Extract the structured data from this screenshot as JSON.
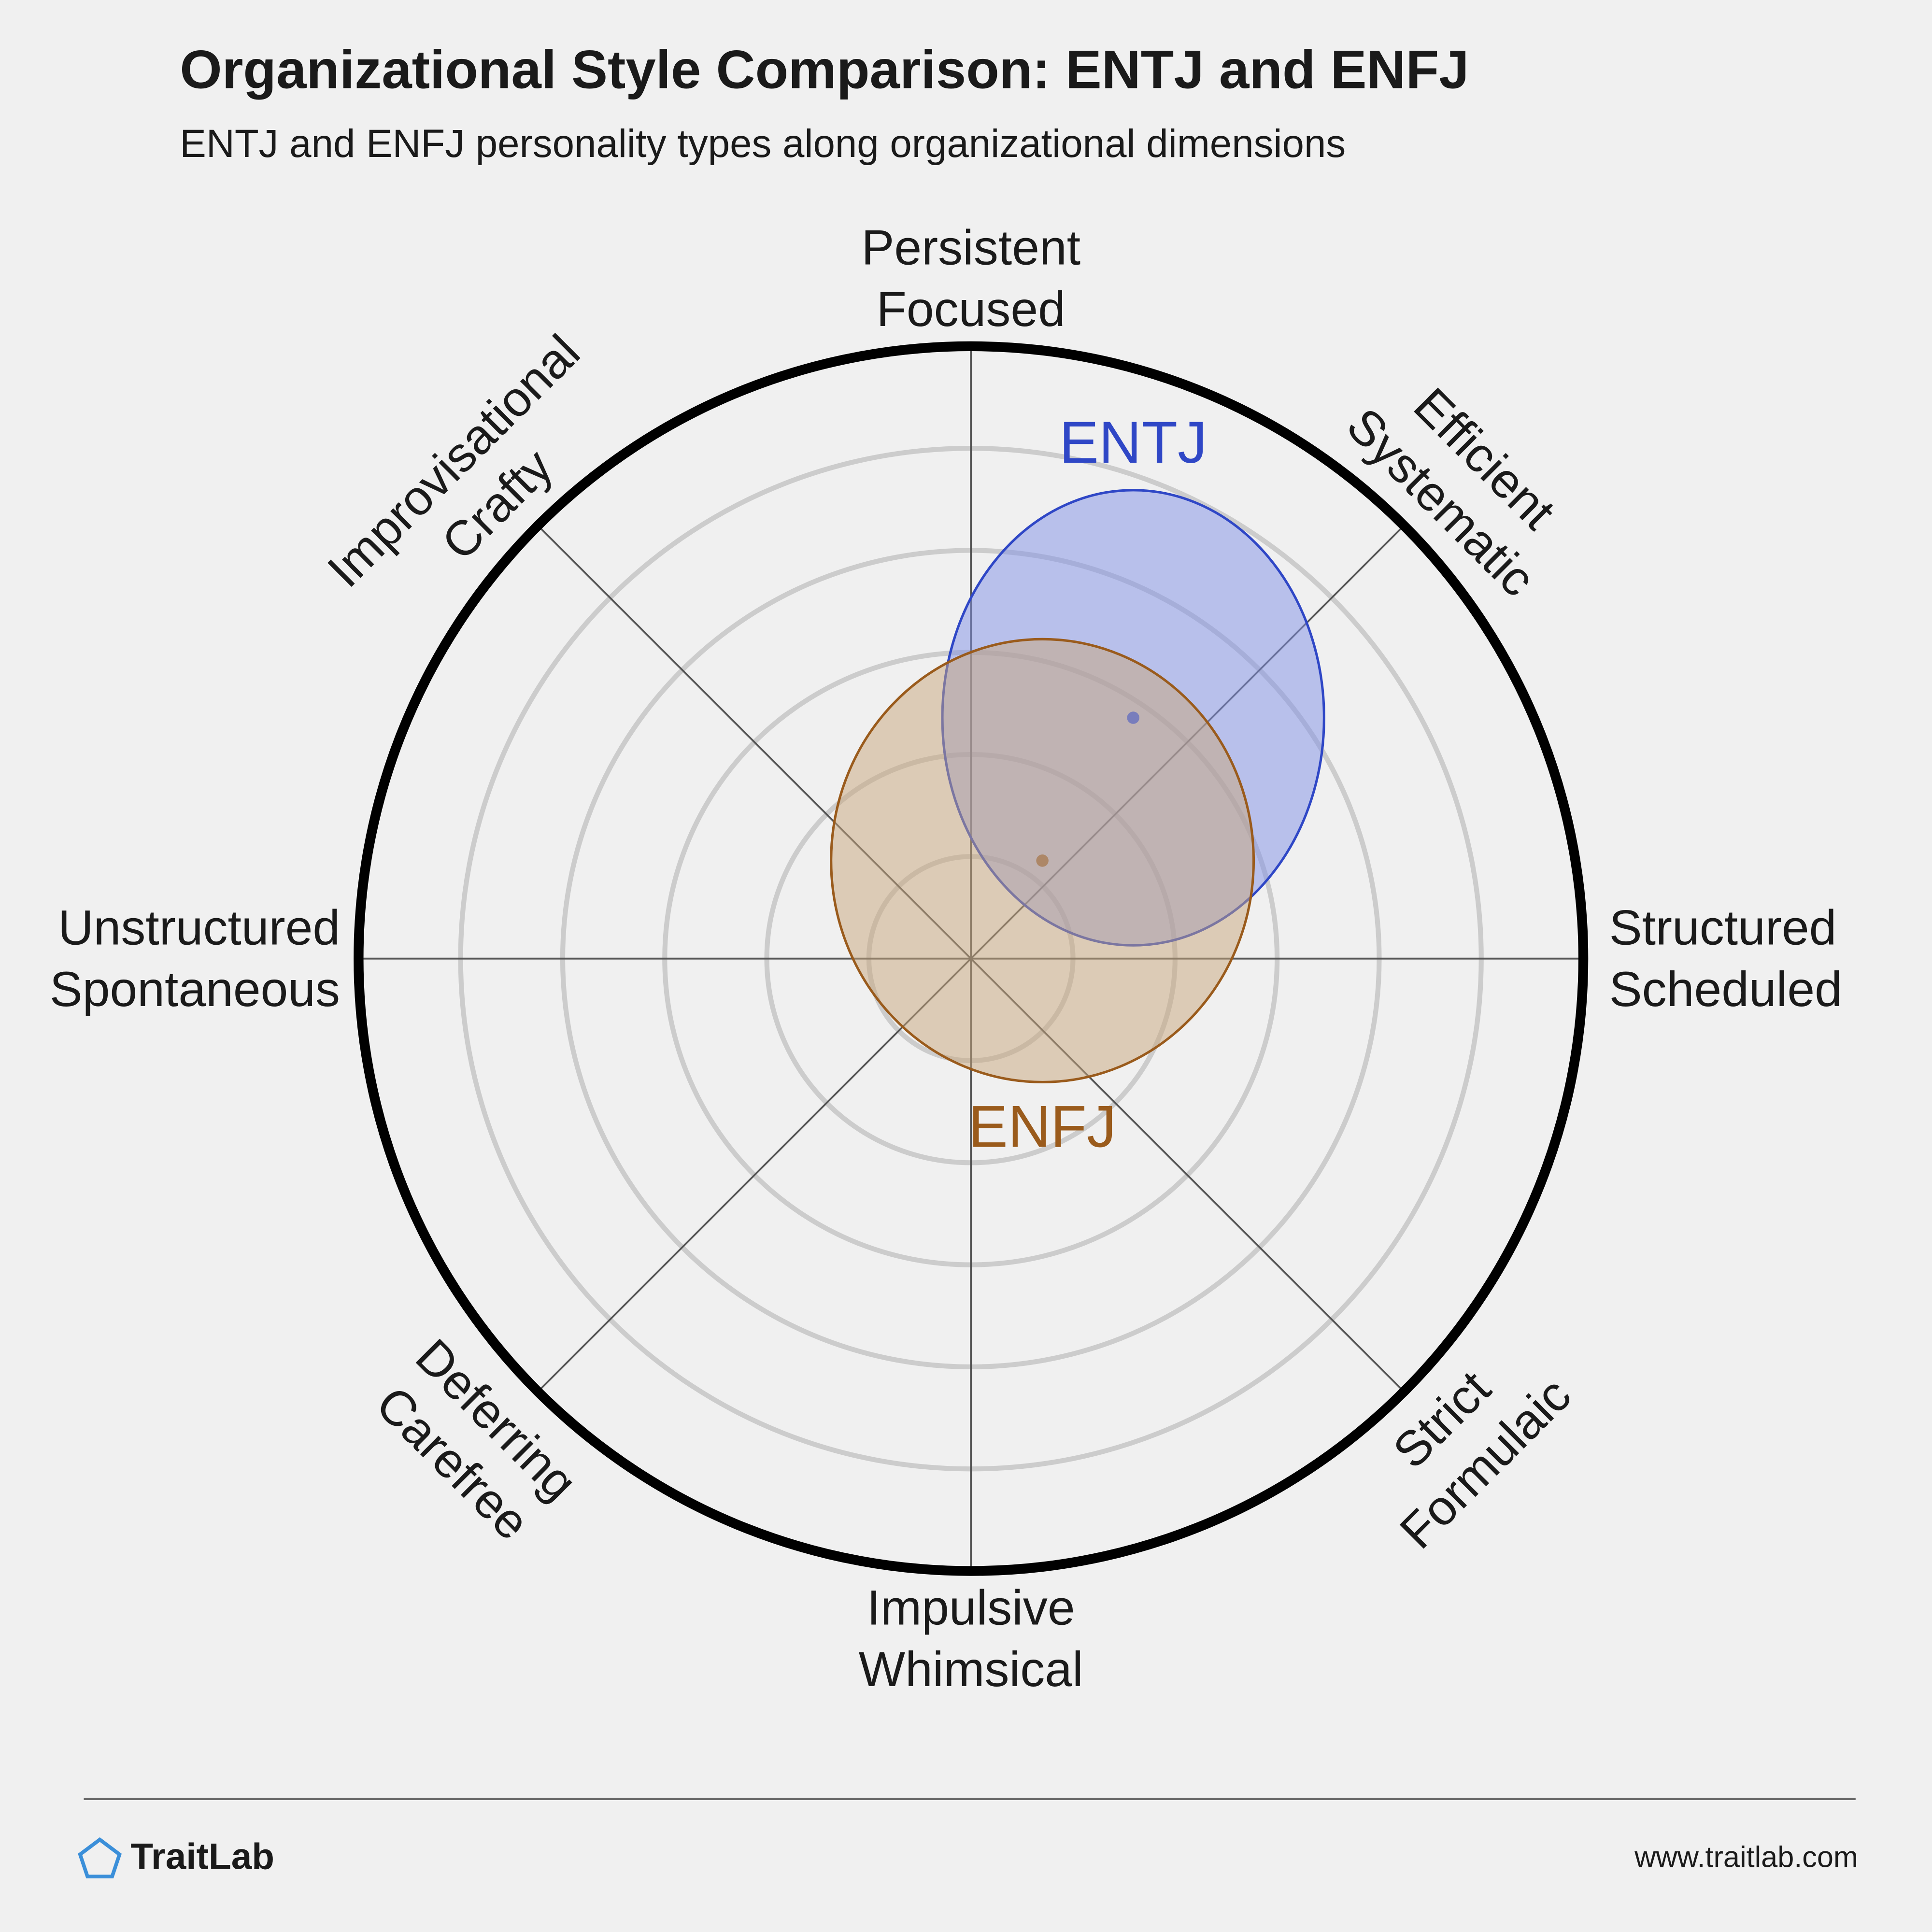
{
  "chart_data": {
    "type": "ellipse",
    "title": "Organizational Style Comparison: ENTJ and ENFJ",
    "subtitle": "ENTJ and ENFJ personality types along organizational dimensions",
    "xlim": [
      -6,
      6
    ],
    "ylim": [
      -6,
      6
    ],
    "rings": [
      1,
      2,
      3,
      4,
      5
    ],
    "axis_labels": [
      {
        "lines": [
          "Persistent",
          "Focused"
        ]
      },
      {
        "lines": [
          "Efficient",
          "Systematic"
        ]
      },
      {
        "lines": [
          "Structured",
          "Scheduled"
        ]
      },
      {
        "lines": [
          "Strict",
          "Formulaic"
        ]
      },
      {
        "lines": [
          "Impulsive",
          "Whimsical"
        ]
      },
      {
        "lines": [
          "Deferring",
          "Carefree"
        ]
      },
      {
        "lines": [
          "Unstructured",
          "Spontaneous"
        ]
      },
      {
        "lines": [
          "Improvisational",
          "Crafty"
        ]
      }
    ],
    "series": [
      {
        "name": "ENTJ",
        "color": "#2f47c6",
        "fill": "#7f90e6",
        "x": 1.59,
        "y": 2.36,
        "rx": 1.87,
        "ry": 2.23
      },
      {
        "name": "ENFJ",
        "color": "#9a5b1c",
        "fill": "#c8a57c",
        "x": 0.7,
        "y": 0.96,
        "rx": 2.07,
        "ry": 2.17
      }
    ]
  },
  "footer": {
    "brand": "TraitLab",
    "url": "www.traitlab.com"
  }
}
